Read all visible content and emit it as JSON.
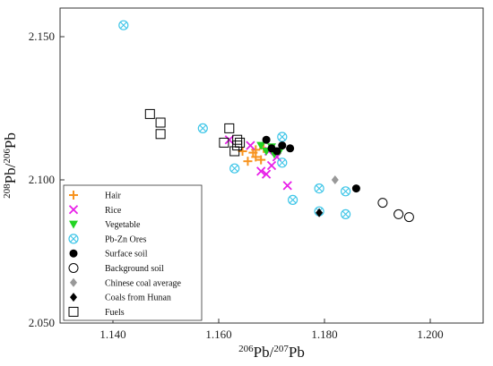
{
  "chart_data": {
    "type": "scatter",
    "xlabel": {
      "sup": "206",
      "base": "Pb/",
      "sup2": "207",
      "base2": "Pb"
    },
    "ylabel": {
      "sup": "208",
      "base": "Pb/",
      "sup2": "206",
      "base2": "Pb"
    },
    "xlim": [
      1.13,
      1.21
    ],
    "ylim": [
      2.05,
      2.16
    ],
    "x_ticks": [
      1.14,
      1.16,
      1.18,
      1.2
    ],
    "x_tick_labels": [
      "1.140",
      "1.160",
      "1.180",
      "1.200"
    ],
    "y_ticks": [
      2.05,
      2.1,
      2.15
    ],
    "y_tick_labels": [
      "2.050",
      "2.100",
      "2.150"
    ],
    "grid": false,
    "legend_position": "bottom-left",
    "series": [
      {
        "name": "Hair",
        "marker": "plus",
        "color": "#f7931e",
        "points": [
          [
            1.1645,
            2.11
          ],
          [
            1.1655,
            2.1065
          ],
          [
            1.167,
            2.108
          ],
          [
            1.168,
            2.107
          ],
          [
            1.1665,
            2.1095
          ],
          [
            1.167,
            2.1105
          ],
          [
            1.1685,
            2.111
          ]
        ]
      },
      {
        "name": "Rice",
        "marker": "cross",
        "color": "#e81fe8",
        "points": [
          [
            1.162,
            2.114
          ],
          [
            1.166,
            2.112
          ],
          [
            1.168,
            2.103
          ],
          [
            1.169,
            2.102
          ],
          [
            1.17,
            2.105
          ],
          [
            1.173,
            2.098
          ],
          [
            1.171,
            2.108
          ],
          [
            1.1695,
            2.11
          ]
        ]
      },
      {
        "name": "Vegetable",
        "marker": "triangle-down",
        "color": "#22d422",
        "points": [
          [
            1.169,
            2.11
          ],
          [
            1.1705,
            2.109
          ],
          [
            1.1715,
            2.11
          ],
          [
            1.17,
            2.1115
          ],
          [
            1.168,
            2.112
          ]
        ]
      },
      {
        "name": "Pb-Zn Ores",
        "marker": "circle-x",
        "color": "#3fc6e8",
        "points": [
          [
            1.142,
            2.154
          ],
          [
            1.157,
            2.118
          ],
          [
            1.163,
            2.104
          ],
          [
            1.172,
            2.115
          ],
          [
            1.174,
            2.093
          ],
          [
            1.179,
            2.097
          ],
          [
            1.179,
            2.089
          ],
          [
            1.184,
            2.096
          ],
          [
            1.184,
            2.088
          ],
          [
            1.172,
            2.106
          ]
        ]
      },
      {
        "name": "Surface soil",
        "marker": "circle-filled",
        "color": "#000000",
        "points": [
          [
            1.169,
            2.114
          ],
          [
            1.17,
            2.111
          ],
          [
            1.171,
            2.11
          ],
          [
            1.172,
            2.112
          ],
          [
            1.1735,
            2.111
          ],
          [
            1.186,
            2.097
          ]
        ]
      },
      {
        "name": "Background soil",
        "marker": "circle-open",
        "color": "#000000",
        "points": [
          [
            1.191,
            2.092
          ],
          [
            1.194,
            2.088
          ],
          [
            1.196,
            2.087
          ]
        ]
      },
      {
        "name": "Chinese coal average",
        "marker": "diamond-filled",
        "color": "#999999",
        "points": [
          [
            1.182,
            2.1
          ]
        ]
      },
      {
        "name": "Coals from Hunan",
        "marker": "diamond-filled",
        "color": "#000000",
        "points": [
          [
            1.179,
            2.0885
          ]
        ]
      },
      {
        "name": "Fuels",
        "marker": "square-open",
        "color": "#000000",
        "points": [
          [
            1.147,
            2.123
          ],
          [
            1.149,
            2.12
          ],
          [
            1.149,
            2.116
          ],
          [
            1.162,
            2.118
          ],
          [
            1.161,
            2.113
          ],
          [
            1.163,
            2.11
          ],
          [
            1.1635,
            2.114
          ],
          [
            1.164,
            2.113
          ],
          [
            1.1635,
            2.112
          ]
        ]
      }
    ]
  }
}
